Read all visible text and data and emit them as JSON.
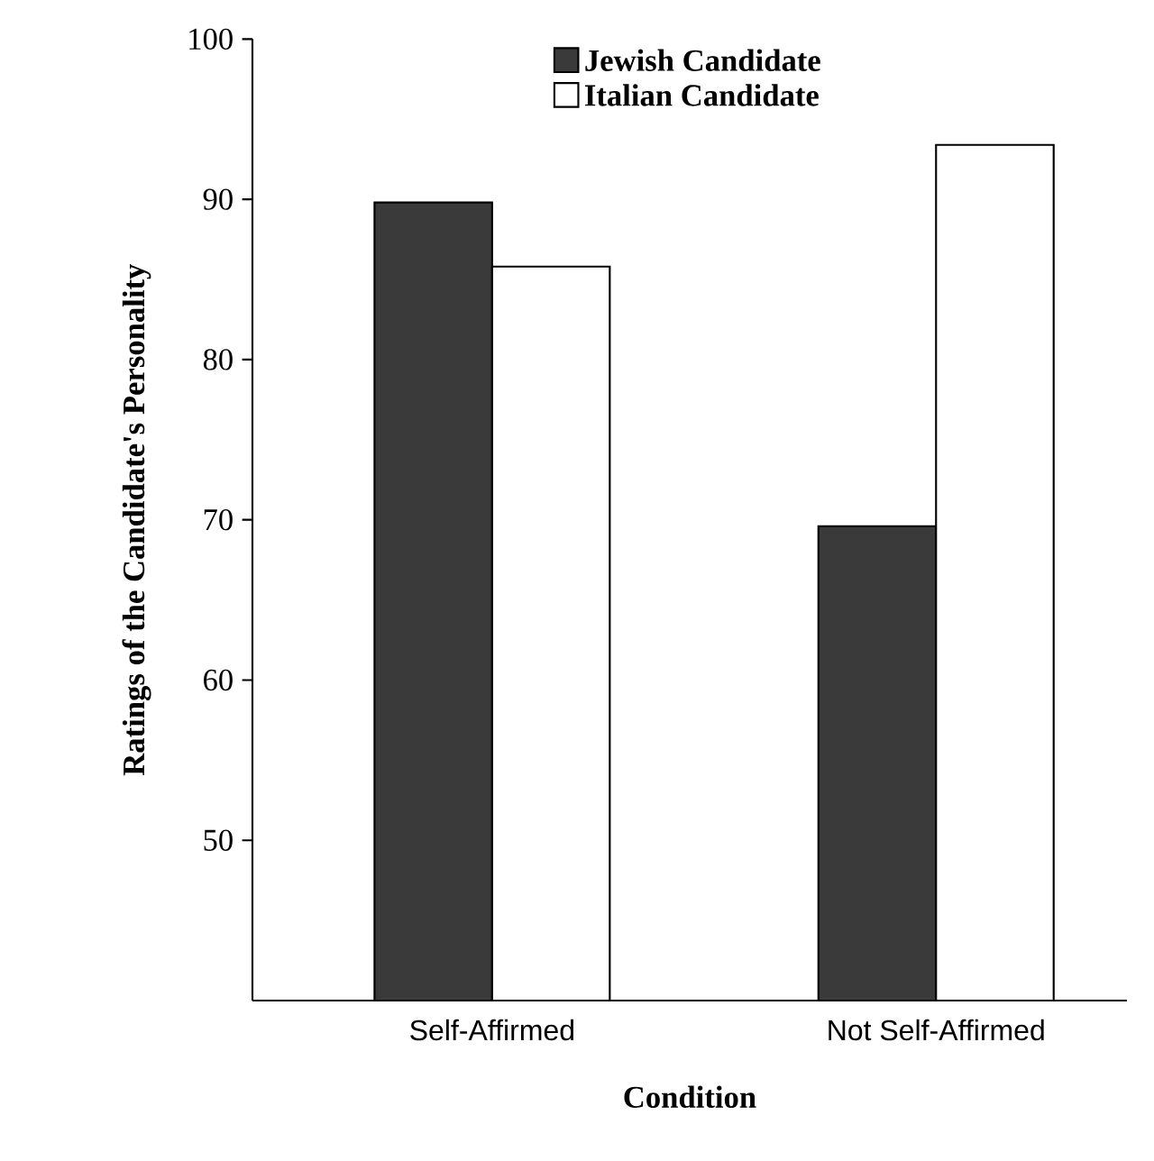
{
  "chart_data": {
    "type": "bar",
    "xlabel": "Condition",
    "ylabel": "Ratings of the Candidate's Personality",
    "categories": [
      "Self-Affirmed",
      "Not Self-Affirmed"
    ],
    "series": [
      {
        "name": "Jewish Candidate",
        "color": "#3a3a3a",
        "values": [
          89.8,
          69.6
        ]
      },
      {
        "name": "Italian Candidate",
        "color": "#ffffff",
        "values": [
          85.8,
          93.4
        ]
      }
    ],
    "ylim": [
      40,
      100
    ],
    "yticks": [
      50,
      60,
      70,
      80,
      90,
      100
    ],
    "grid": false,
    "legend": "top"
  }
}
